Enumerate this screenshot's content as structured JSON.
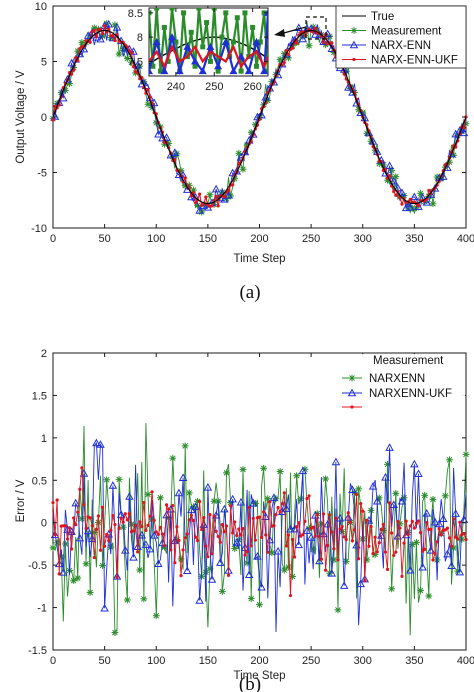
{
  "chart_data": [
    {
      "type": "line",
      "caption": "(a)",
      "xlabel": "Time Step",
      "ylabel": "Output Voltage / V",
      "xlim": [
        0,
        400
      ],
      "ylim": [
        -10,
        10
      ],
      "xticks": [
        0,
        50,
        100,
        150,
        200,
        250,
        300,
        350,
        400
      ],
      "yticks": [
        -10,
        -5,
        0,
        5,
        10
      ],
      "grid": false,
      "legend_position": "top-right",
      "signal": {
        "amplitude": 7.8,
        "period": 200,
        "phase_peak_x": 50
      },
      "series": [
        {
          "name": "True",
          "color": "#000000",
          "marker": "none"
        },
        {
          "name": "Measurement",
          "color": "#2a8c2a",
          "marker": "star"
        },
        {
          "name": "NARX-ENN",
          "color": "#1f2fd6",
          "marker": "triangle"
        },
        {
          "name": "NARX-ENN-UKF",
          "color": "#e0141e",
          "marker": "dot"
        }
      ],
      "inset": {
        "xlim": [
          233,
          264
        ],
        "ylim": [
          7.2,
          8.6
        ],
        "xticks": [
          240,
          250,
          260
        ],
        "yticks": [
          7.5,
          8,
          8.5
        ],
        "series": [
          {
            "name": "True",
            "x": [
              233,
              236,
              239,
              242,
              245,
              248,
              250,
              252,
              255,
              258,
              261,
              264
            ],
            "y": [
              7.45,
              7.6,
              7.72,
              7.84,
              7.93,
              7.99,
              8.0,
              7.99,
              7.93,
              7.84,
              7.72,
              7.56
            ]
          },
          {
            "name": "Measurement",
            "x": [
              233,
              234,
              235,
              236,
              237,
              238,
              239,
              240,
              241,
              242,
              243,
              244,
              245,
              246,
              247,
              248,
              249,
              250,
              251,
              252,
              253,
              254,
              255,
              256,
              257,
              258,
              259,
              260,
              261,
              262,
              263,
              264
            ],
            "y": [
              8.5,
              7.4,
              8.6,
              7.3,
              8.2,
              7.5,
              8.6,
              7.9,
              7.3,
              8.5,
              7.6,
              8.1,
              7.4,
              8.6,
              7.8,
              8.3,
              7.5,
              8.6,
              7.3,
              8.0,
              8.5,
              7.6,
              7.9,
              8.4,
              7.3,
              8.5,
              7.6,
              8.2,
              7.4,
              7.9,
              8.5,
              7.3
            ]
          },
          {
            "name": "NARX-ENN",
            "x": [
              233,
              235,
              237,
              239,
              241,
              243,
              245,
              247,
              249,
              251,
              253,
              255,
              257,
              259,
              261,
              263,
              264
            ],
            "y": [
              7.3,
              7.9,
              7.3,
              8.0,
              7.3,
              7.8,
              7.5,
              7.3,
              7.8,
              7.4,
              7.9,
              7.3,
              7.6,
              7.3,
              7.9,
              7.3,
              8.5
            ]
          },
          {
            "name": "NARX-ENN-UKF",
            "x": [
              233,
              235,
              237,
              239,
              241,
              243,
              245,
              247,
              249,
              251,
              253,
              255,
              257,
              259,
              261,
              263,
              264
            ],
            "y": [
              7.5,
              7.7,
              7.4,
              7.8,
              7.5,
              7.6,
              7.8,
              7.5,
              7.7,
              7.6,
              7.5,
              7.8,
              7.4,
              7.6,
              7.7,
              7.4,
              7.6
            ]
          }
        ]
      }
    },
    {
      "type": "line",
      "caption": "(b)",
      "xlabel": "Time Step",
      "ylabel": "Error / V",
      "xlim": [
        0,
        400
      ],
      "ylim": [
        -1.5,
        2
      ],
      "xticks": [
        0,
        50,
        100,
        150,
        200,
        250,
        300,
        350,
        400
      ],
      "yticks": [
        -1.5,
        -1,
        -0.5,
        0,
        0.5,
        1,
        1.5,
        2
      ],
      "grid": false,
      "legend_position": "top-right",
      "legend_labels": [
        "Measurement",
        "NARXENN",
        "NARXENN-UKF"
      ],
      "series": [
        {
          "name": "Measurement",
          "color": "#2a8c2a",
          "marker": "star",
          "error_std": 0.55
        },
        {
          "name": "NARX-ENN",
          "color": "#1f2fd6",
          "marker": "triangle",
          "error_std": 0.42
        },
        {
          "name": "NARX-ENN-UKF",
          "color": "#e0141e",
          "marker": "dot",
          "error_std": 0.25
        }
      ]
    }
  ]
}
